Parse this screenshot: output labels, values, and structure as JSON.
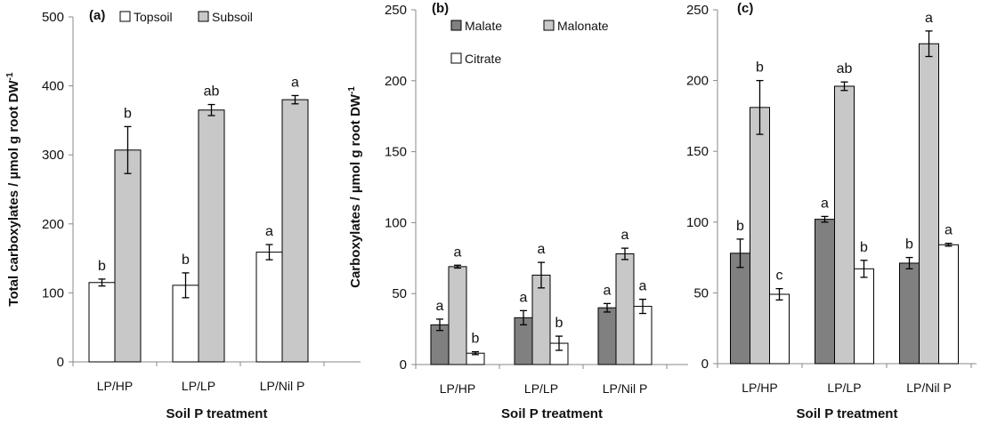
{
  "chart_data": [
    {
      "panel": "(a)",
      "type": "bar",
      "ylabel": "Total carboxylates / µmol g root DW",
      "ylabel_sup": "-1",
      "xlabel": "Soil P treatment",
      "ylim": [
        0,
        500
      ],
      "yticks": [
        0,
        100,
        200,
        300,
        400,
        500
      ],
      "categories": [
        "LP/HP",
        "LP/LP",
        "LP/Nil P"
      ],
      "legend_position": "top",
      "series": [
        {
          "name": "Topsoil",
          "color": "#ffffff",
          "values": [
            115,
            111,
            159
          ],
          "errors": [
            5,
            18,
            11
          ],
          "letters": [
            "b",
            "b",
            "a"
          ]
        },
        {
          "name": "Subsoil",
          "color": "#c8c8c8",
          "values": [
            307,
            365,
            380
          ],
          "errors": [
            34,
            8,
            6
          ],
          "letters": [
            "b",
            "ab",
            "a"
          ]
        }
      ]
    },
    {
      "panel": "(b)",
      "type": "bar",
      "ylabel": "Carboxylates / µmol g root DW",
      "ylabel_sup": "-1",
      "xlabel": "Soil P treatment",
      "ylim": [
        0,
        250
      ],
      "yticks": [
        0,
        50,
        100,
        150,
        200,
        250
      ],
      "categories": [
        "LP/HP",
        "LP/LP",
        "LP/Nil P"
      ],
      "legend_position": "top",
      "series": [
        {
          "name": "Malate",
          "color": "#808080",
          "values": [
            28,
            33,
            40
          ],
          "errors": [
            4,
            5,
            3
          ],
          "letters": [
            "a",
            "a",
            "a"
          ]
        },
        {
          "name": "Malonate",
          "color": "#c8c8c8",
          "values": [
            69,
            63,
            78
          ],
          "errors": [
            1,
            9,
            4
          ],
          "letters": [
            "a",
            "a",
            "a"
          ]
        },
        {
          "name": "Citrate",
          "color": "#ffffff",
          "values": [
            8,
            15,
            41
          ],
          "errors": [
            1,
            5,
            5
          ],
          "letters": [
            "b",
            "b",
            "a"
          ]
        }
      ]
    },
    {
      "panel": "(c)",
      "type": "bar",
      "xlabel": "Soil P treatment",
      "ylim": [
        0,
        250
      ],
      "yticks": [
        0,
        50,
        100,
        150,
        200,
        250
      ],
      "categories": [
        "LP/HP",
        "LP/LP",
        "LP/Nil P"
      ],
      "series": [
        {
          "color": "#808080",
          "values": [
            78,
            102,
            71
          ],
          "errors": [
            10,
            2,
            4
          ],
          "letters": [
            "b",
            "a",
            "b"
          ]
        },
        {
          "color": "#c8c8c8",
          "values": [
            181,
            196,
            226
          ],
          "errors": [
            19,
            3,
            9
          ],
          "letters": [
            "b",
            "ab",
            "a"
          ]
        },
        {
          "color": "#ffffff",
          "values": [
            49,
            67,
            84
          ],
          "errors": [
            4,
            6,
            1
          ],
          "letters": [
            "c",
            "b",
            "a"
          ]
        }
      ]
    }
  ]
}
